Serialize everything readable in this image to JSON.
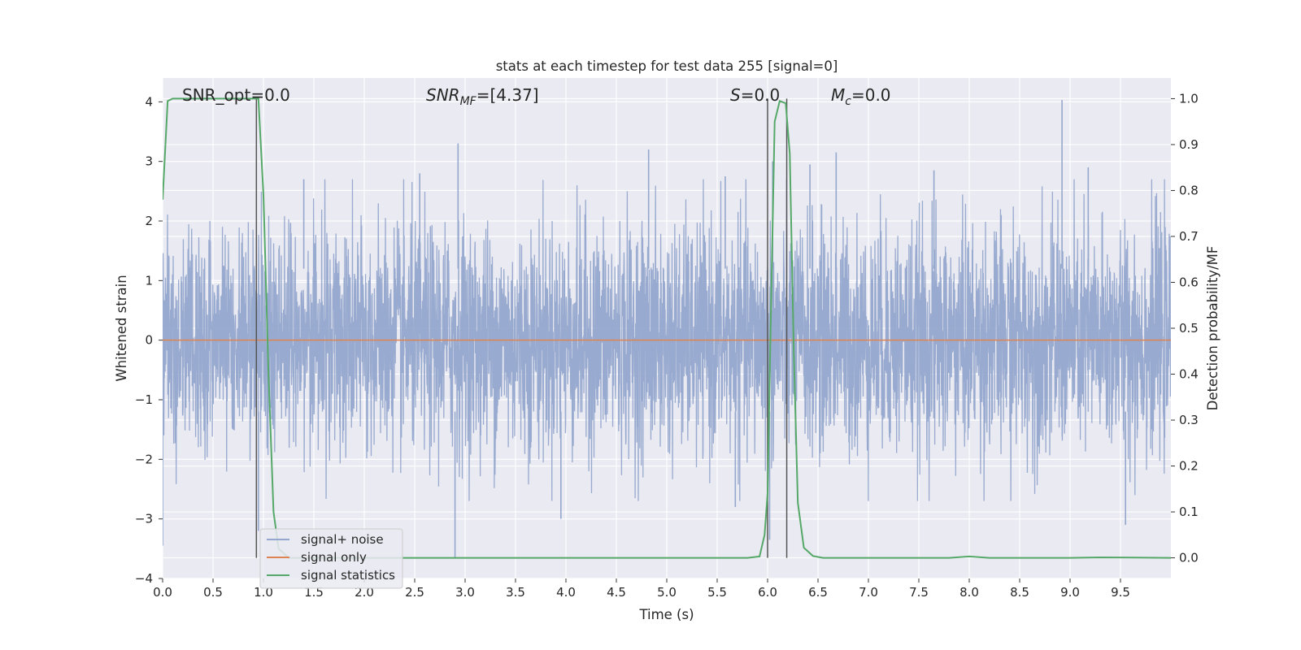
{
  "chart_data": {
    "type": "line",
    "title": "stats at each timestep for test data 255 [signal=0]",
    "xlabel": "Time (s)",
    "ylabel": "Whitened strain",
    "y2label": "Detection probability/MF",
    "xlim": [
      0,
      10
    ],
    "ylim": [
      -4,
      4.4
    ],
    "y2lim": [
      -0.045,
      1.045
    ],
    "x_ticks": [
      "0.0",
      "0.5",
      "1.0",
      "1.5",
      "2.0",
      "2.5",
      "3.0",
      "3.5",
      "4.0",
      "4.5",
      "5.0",
      "5.5",
      "6.0",
      "6.5",
      "7.0",
      "7.5",
      "8.0",
      "8.5",
      "9.0",
      "9.5"
    ],
    "y_ticks": [
      "4",
      "3",
      "2",
      "1",
      "0",
      "−1",
      "−2",
      "−3",
      "−4"
    ],
    "y2_ticks": [
      "1.0",
      "0.9",
      "0.8",
      "0.7",
      "0.6",
      "0.5",
      "0.4",
      "0.3",
      "0.2",
      "0.1",
      "0.0"
    ],
    "annotations": {
      "snr_opt": "SNR_opt=0.0",
      "snr_mf_base": "SNR",
      "snr_mf_sub": "MF",
      "snr_mf_value": "=[4.37]",
      "s_sym": "S",
      "s_value": "=0.0",
      "mc_base": "M",
      "mc_sub": "c",
      "mc_value": "=0.0"
    },
    "legend": {
      "position": "lower-left",
      "entries": [
        "signal+ noise",
        "signal only",
        "signal statistics"
      ]
    },
    "colors": {
      "noise": "#94a7cc",
      "signal_only": "#dd8452",
      "stats": "#55a868",
      "vlines": "#555555",
      "axes_bg": "#eaeaf2",
      "grid": "#ffffff"
    },
    "series": [
      {
        "name": "signal+ noise",
        "axis": "left",
        "style": "dense-noise",
        "x_range": [
          0,
          10
        ],
        "sigma": 0.95,
        "peaks": [
          {
            "x": 0.0,
            "y": -3.45
          },
          {
            "x": 0.95,
            "y": -3.2
          },
          {
            "x": 2.93,
            "y": 3.3
          },
          {
            "x": 2.9,
            "y": -3.65
          },
          {
            "x": 4.82,
            "y": 3.2
          },
          {
            "x": 5.58,
            "y": 2.75
          },
          {
            "x": 6.02,
            "y": -3.35
          },
          {
            "x": 6.05,
            "y": 3.0
          },
          {
            "x": 6.42,
            "y": 2.95
          },
          {
            "x": 6.68,
            "y": 3.15
          },
          {
            "x": 8.92,
            "y": 4.03
          },
          {
            "x": 9.18,
            "y": 2.9
          },
          {
            "x": 9.55,
            "y": -3.1
          },
          {
            "x": 3.95,
            "y": -3.0
          },
          {
            "x": 5.68,
            "y": -2.8
          },
          {
            "x": 2.55,
            "y": 2.8
          },
          {
            "x": 1.4,
            "y": 2.7
          },
          {
            "x": 7.65,
            "y": 2.85
          }
        ]
      },
      {
        "name": "signal only",
        "axis": "left",
        "x": [
          0,
          10
        ],
        "y": [
          0,
          0
        ]
      },
      {
        "name": "signal statistics",
        "axis": "right",
        "x": [
          0.0,
          0.05,
          0.1,
          0.2,
          0.3,
          0.4,
          0.5,
          0.6,
          0.7,
          0.8,
          0.9,
          0.93,
          0.95,
          1.0,
          1.05,
          1.1,
          1.15,
          1.25,
          1.4,
          2.0,
          3.0,
          4.0,
          5.0,
          5.5,
          5.8,
          5.92,
          5.97,
          6.0,
          6.03,
          6.07,
          6.12,
          6.18,
          6.22,
          6.26,
          6.3,
          6.36,
          6.45,
          6.55,
          7.0,
          7.8,
          8.0,
          8.2,
          9.0,
          9.3,
          10.0
        ],
        "y": [
          0.78,
          0.995,
          1.0,
          1.0,
          1.0,
          1.0,
          1.0,
          1.0,
          1.0,
          1.0,
          1.0,
          1.0,
          1.0,
          0.79,
          0.4,
          0.1,
          0.02,
          0.0,
          0.0,
          0.0,
          0.0,
          0.0,
          0.0,
          0.0,
          0.0,
          0.003,
          0.05,
          0.14,
          0.5,
          0.95,
          0.995,
          0.99,
          0.88,
          0.45,
          0.12,
          0.022,
          0.004,
          0.0,
          0.0,
          0.0,
          0.003,
          0.0,
          0.0,
          0.001,
          0.0
        ]
      }
    ],
    "vertical_lines": [
      0.93,
      6.0,
      6.19
    ]
  }
}
